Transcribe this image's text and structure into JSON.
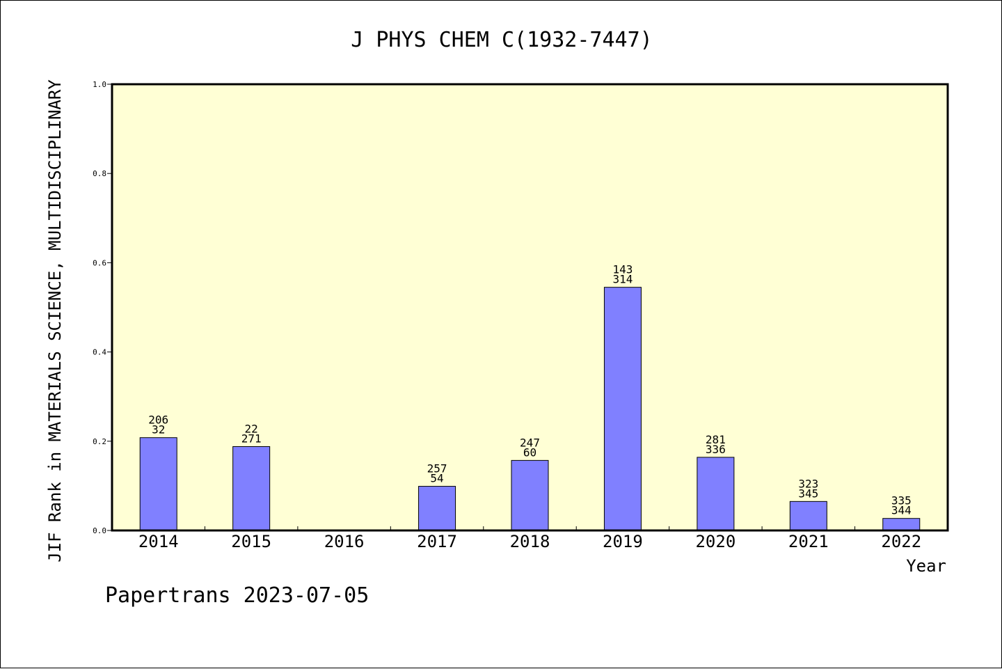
{
  "chart_data": {
    "type": "bar",
    "title": "J PHYS CHEM C(1932-7447)",
    "xlabel": "Year",
    "ylabel": "JIF Rank in MATERIALS SCIENCE, MULTIDISCIPLINARY",
    "ylim": [
      0,
      1.0
    ],
    "yticks": [
      "0.0",
      "0.2",
      "0.4",
      "0.6",
      "0.8",
      "1.0"
    ],
    "yticks_values": [
      0,
      0.2,
      0.4,
      0.6,
      0.8,
      1.0
    ],
    "categories": [
      "2014",
      "2015",
      "2016",
      "2017",
      "2018",
      "2019",
      "2020",
      "2021",
      "2022"
    ],
    "values": [
      0.208,
      0.188,
      null,
      0.099,
      0.157,
      0.545,
      0.164,
      0.065,
      0.027
    ],
    "labels_top": [
      "206",
      "22",
      "",
      "257",
      "247",
      "143",
      "281",
      "323",
      "335"
    ],
    "labels_bottom": [
      "32",
      "271",
      "",
      "54",
      "60",
      "314",
      "336",
      "345",
      "344"
    ],
    "grid": false,
    "plot_background": "#ffffd5",
    "bar_color": "#8080ff"
  },
  "footer": {
    "text": "Papertrans 2023-07-05"
  }
}
